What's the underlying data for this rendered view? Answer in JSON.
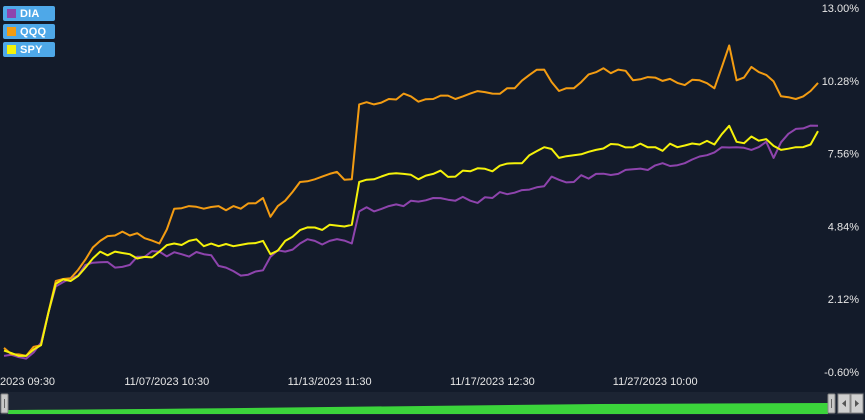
{
  "chart_data": {
    "type": "line",
    "ylim": [
      -0.6,
      13.0
    ],
    "y_ticks": [
      "13.00%",
      "10.28%",
      "7.56%",
      "4.84%",
      "2.12%",
      "-0.60%"
    ],
    "y_tick_values": [
      13.0,
      10.28,
      7.56,
      4.84,
      2.12,
      -0.6
    ],
    "x_ticks": [
      "2023 09:30",
      "11/07/2023 10:30",
      "11/13/2023 11:30",
      "11/17/2023 12:30",
      "11/27/2023 10:00"
    ],
    "x_tick_index": [
      0,
      22,
      44,
      66,
      88
    ],
    "n_points": 111,
    "grid": false,
    "legend_position": "top-left",
    "series": [
      {
        "name": "DIA",
        "color": "#8e44ad",
        "keys": [
          [
            0,
            0.0
          ],
          [
            3,
            -0.1
          ],
          [
            5,
            0.5
          ],
          [
            7,
            2.6
          ],
          [
            9,
            2.9
          ],
          [
            11,
            3.4
          ],
          [
            13,
            3.5
          ],
          [
            15,
            3.3
          ],
          [
            17,
            3.4
          ],
          [
            19,
            3.7
          ],
          [
            21,
            3.9
          ],
          [
            24,
            3.8
          ],
          [
            27,
            3.8
          ],
          [
            30,
            3.3
          ],
          [
            32,
            3.0
          ],
          [
            35,
            3.2
          ],
          [
            36,
            3.7
          ],
          [
            38,
            3.9
          ],
          [
            40,
            4.2
          ],
          [
            42,
            4.3
          ],
          [
            44,
            4.3
          ],
          [
            47,
            4.2
          ],
          [
            48,
            5.4
          ],
          [
            50,
            5.4
          ],
          [
            52,
            5.6
          ],
          [
            55,
            5.8
          ],
          [
            58,
            5.9
          ],
          [
            61,
            5.8
          ],
          [
            63,
            5.8
          ],
          [
            66,
            5.9
          ],
          [
            69,
            6.1
          ],
          [
            72,
            6.3
          ],
          [
            74,
            6.7
          ],
          [
            77,
            6.5
          ],
          [
            80,
            6.8
          ],
          [
            83,
            6.8
          ],
          [
            86,
            7.0
          ],
          [
            89,
            7.2
          ],
          [
            92,
            7.2
          ],
          [
            95,
            7.5
          ],
          [
            97,
            7.8
          ],
          [
            99,
            7.8
          ],
          [
            101,
            7.7
          ],
          [
            103,
            8.0
          ],
          [
            104,
            7.4
          ],
          [
            106,
            8.3
          ],
          [
            108,
            8.5
          ],
          [
            110,
            8.6
          ]
        ]
      },
      {
        "name": "QQQ",
        "color": "#f39c12",
        "keys": [
          [
            0,
            0.3
          ],
          [
            3,
            0.0
          ],
          [
            5,
            0.4
          ],
          [
            7,
            2.8
          ],
          [
            9,
            2.9
          ],
          [
            11,
            3.6
          ],
          [
            13,
            4.3
          ],
          [
            15,
            4.5
          ],
          [
            17,
            4.5
          ],
          [
            19,
            4.4
          ],
          [
            21,
            4.2
          ],
          [
            23,
            5.5
          ],
          [
            25,
            5.6
          ],
          [
            27,
            5.5
          ],
          [
            29,
            5.6
          ],
          [
            31,
            5.6
          ],
          [
            33,
            5.7
          ],
          [
            35,
            5.9
          ],
          [
            36,
            5.2
          ],
          [
            38,
            5.8
          ],
          [
            40,
            6.5
          ],
          [
            42,
            6.6
          ],
          [
            44,
            6.8
          ],
          [
            47,
            6.6
          ],
          [
            48,
            9.4
          ],
          [
            50,
            9.4
          ],
          [
            52,
            9.6
          ],
          [
            54,
            9.8
          ],
          [
            56,
            9.5
          ],
          [
            58,
            9.6
          ],
          [
            61,
            9.6
          ],
          [
            63,
            9.8
          ],
          [
            66,
            9.8
          ],
          [
            69,
            10.0
          ],
          [
            71,
            10.5
          ],
          [
            73,
            10.7
          ],
          [
            75,
            9.9
          ],
          [
            77,
            10.0
          ],
          [
            80,
            10.6
          ],
          [
            83,
            10.7
          ],
          [
            85,
            10.3
          ],
          [
            88,
            10.4
          ],
          [
            91,
            10.2
          ],
          [
            94,
            10.3
          ],
          [
            96,
            10.0
          ],
          [
            98,
            11.6
          ],
          [
            99,
            10.3
          ],
          [
            101,
            10.8
          ],
          [
            103,
            10.5
          ],
          [
            105,
            9.7
          ],
          [
            107,
            9.6
          ],
          [
            109,
            9.9
          ],
          [
            110,
            10.2
          ]
        ]
      },
      {
        "name": "SPY",
        "color": "#f5f20a",
        "keys": [
          [
            0,
            0.2
          ],
          [
            3,
            0.0
          ],
          [
            5,
            0.4
          ],
          [
            7,
            2.7
          ],
          [
            9,
            2.8
          ],
          [
            11,
            3.3
          ],
          [
            13,
            3.9
          ],
          [
            15,
            3.9
          ],
          [
            17,
            3.8
          ],
          [
            19,
            3.7
          ],
          [
            21,
            3.9
          ],
          [
            23,
            4.2
          ],
          [
            25,
            4.3
          ],
          [
            27,
            4.1
          ],
          [
            29,
            4.1
          ],
          [
            31,
            4.1
          ],
          [
            33,
            4.2
          ],
          [
            35,
            4.3
          ],
          [
            36,
            3.8
          ],
          [
            38,
            4.3
          ],
          [
            40,
            4.7
          ],
          [
            42,
            4.8
          ],
          [
            44,
            4.9
          ],
          [
            47,
            4.9
          ],
          [
            48,
            6.5
          ],
          [
            50,
            6.6
          ],
          [
            52,
            6.8
          ],
          [
            54,
            6.8
          ],
          [
            56,
            6.6
          ],
          [
            58,
            6.8
          ],
          [
            61,
            6.7
          ],
          [
            63,
            6.9
          ],
          [
            66,
            6.9
          ],
          [
            69,
            7.2
          ],
          [
            71,
            7.5
          ],
          [
            73,
            7.8
          ],
          [
            75,
            7.4
          ],
          [
            77,
            7.5
          ],
          [
            80,
            7.7
          ],
          [
            83,
            7.9
          ],
          [
            85,
            7.8
          ],
          [
            88,
            7.8
          ],
          [
            91,
            7.8
          ],
          [
            94,
            7.9
          ],
          [
            96,
            7.9
          ],
          [
            98,
            8.6
          ],
          [
            99,
            8.0
          ],
          [
            101,
            8.2
          ],
          [
            103,
            8.1
          ],
          [
            105,
            7.7
          ],
          [
            107,
            7.8
          ],
          [
            109,
            7.9
          ],
          [
            110,
            8.4
          ]
        ]
      }
    ]
  }
}
